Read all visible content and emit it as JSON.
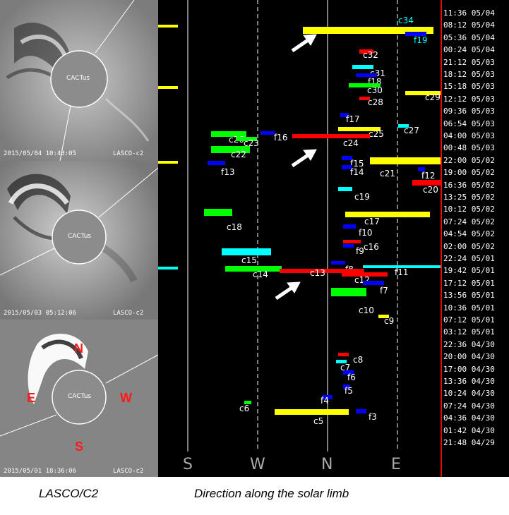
{
  "panels": [
    {
      "timestamp": "2015/05/04 10:48:05",
      "instrument": "LASCO-c2",
      "center_label": "CACTus"
    },
    {
      "timestamp": "2015/05/03 05:12:06",
      "instrument": "LASCO-c2",
      "center_label": "CACTus"
    },
    {
      "timestamp": "2015/05/01 18:36:06",
      "instrument": "LASCO-c2",
      "center_label": "CACTus"
    }
  ],
  "directions": {
    "north": "N",
    "east": "E",
    "west": "W",
    "south": "S"
  },
  "limb_axis": [
    "S",
    "W",
    "N",
    "E"
  ],
  "times": [
    "11:36 05/04",
    "08:12 05/04",
    "05:36 05/04",
    "00:24 05/04",
    "21:12 05/03",
    "18:12 05/03",
    "15:18 05/03",
    "12:12 05/03",
    "09:36 05/03",
    "06:54 05/03",
    "04:00 05/03",
    "00:48 05/03",
    "22:00 05/02",
    "19:00 05/02",
    "16:36 05/02",
    "13:25 05/02",
    "10:12 05/02",
    "07:24 05/02",
    "04:54 05/02",
    "02:00 05/02",
    "22:24 05/01",
    "19:42 05/01",
    "17:12 05/01",
    "13:56 05/01",
    "10:36 05/01",
    "07:12 05/01",
    "03:12 05/01",
    "22:36 04/30",
    "20:00 04/30",
    "17:00 04/30",
    "13:36 04/30",
    "10:24 04/30",
    "07:24 04/30",
    "04:36 04/30",
    "01:42 04/30",
    "21:48 04/29"
  ],
  "events": [
    {
      "id": "c34",
      "color": "#ffff00",
      "label_color": "#00ffff"
    },
    {
      "id": "f19",
      "color": "#0000ff",
      "label_color": "#00ffff"
    },
    {
      "id": "c32",
      "color": "#ff0000",
      "label_color": "#ffffff"
    },
    {
      "id": "c31",
      "color": "#00ffff",
      "label_color": "#ffffff"
    },
    {
      "id": "f18",
      "color": "#0000ff",
      "label_color": "#ffffff"
    },
    {
      "id": "c30",
      "color": "#00ff00",
      "label_color": "#ffffff"
    },
    {
      "id": "c29",
      "color": "#ffff00",
      "label_color": "#ffffff"
    },
    {
      "id": "c28",
      "color": "#ff0000",
      "label_color": "#ffffff"
    },
    {
      "id": "f17",
      "color": "#0000ff",
      "label_color": "#ffffff"
    },
    {
      "id": "c27",
      "color": "#00ffff",
      "label_color": "#ffffff"
    },
    {
      "id": "c25",
      "color": "#ffff00",
      "label_color": "#ffffff"
    },
    {
      "id": "c26",
      "color": "#00ff00",
      "label_color": "#ffffff"
    },
    {
      "id": "c23",
      "color": "#00ff00",
      "label_color": "#ffffff"
    },
    {
      "id": "f16",
      "color": "#0000ff",
      "label_color": "#ffffff"
    },
    {
      "id": "c24",
      "color": "#ff0000",
      "label_color": "#ffffff"
    },
    {
      "id": "c22",
      "color": "#00ff00",
      "label_color": "#ffffff"
    },
    {
      "id": "f15",
      "color": "#0000ff",
      "label_color": "#ffffff"
    },
    {
      "id": "f13",
      "color": "#0000ff",
      "label_color": "#ffffff"
    },
    {
      "id": "f14",
      "color": "#0000ff",
      "label_color": "#ffffff"
    },
    {
      "id": "c21",
      "color": "#ffff00",
      "label_color": "#ffffff"
    },
    {
      "id": "f12",
      "color": "#0000ff",
      "label_color": "#ffffff"
    },
    {
      "id": "c20",
      "color": "#ff0000",
      "label_color": "#ffffff"
    },
    {
      "id": "c19",
      "color": "#00ffff",
      "label_color": "#ffffff"
    },
    {
      "id": "c17",
      "color": "#ffff00",
      "label_color": "#ffffff"
    },
    {
      "id": "c18",
      "color": "#00ff00",
      "label_color": "#ffffff"
    },
    {
      "id": "f10",
      "color": "#0000ff",
      "label_color": "#ffffff"
    },
    {
      "id": "c16",
      "color": "#ff0000",
      "label_color": "#ffffff"
    },
    {
      "id": "f9",
      "color": "#0000ff",
      "label_color": "#ffffff"
    },
    {
      "id": "c15",
      "color": "#00ffff",
      "label_color": "#ffffff"
    },
    {
      "id": "f8",
      "color": "#0000ff",
      "label_color": "#ffffff"
    },
    {
      "id": "f11",
      "color": "#00ffff",
      "label_color": "#ffffff"
    },
    {
      "id": "c14",
      "color": "#00ff00",
      "label_color": "#ffffff"
    },
    {
      "id": "c13",
      "color": "#ff0000",
      "label_color": "#ffffff"
    },
    {
      "id": "c12",
      "color": "#ff0000",
      "label_color": "#ffffff"
    },
    {
      "id": "f7",
      "color": "#0000ff",
      "label_color": "#ffffff"
    },
    {
      "id": "c10",
      "color": "#00ff00",
      "label_color": "#ffffff"
    },
    {
      "id": "c9",
      "color": "#ffff00",
      "label_color": "#ffffff"
    },
    {
      "id": "c8",
      "color": "#ff0000",
      "label_color": "#ffffff"
    },
    {
      "id": "c7",
      "color": "#00ffff",
      "label_color": "#ffffff"
    },
    {
      "id": "f6",
      "color": "#0000ff",
      "label_color": "#ffffff"
    },
    {
      "id": "f5",
      "color": "#0000ff",
      "label_color": "#ffffff"
    },
    {
      "id": "f4",
      "color": "#0000ff",
      "label_color": "#ffffff"
    },
    {
      "id": "c6",
      "color": "#00ff00",
      "label_color": "#ffffff"
    },
    {
      "id": "c5",
      "color": "#ffff00",
      "label_color": "#ffffff"
    },
    {
      "id": "f3",
      "color": "#0000ff",
      "label_color": "#ffffff"
    }
  ],
  "captions": {
    "left": "LASCO/C2",
    "right": "Direction along the solar limb"
  }
}
